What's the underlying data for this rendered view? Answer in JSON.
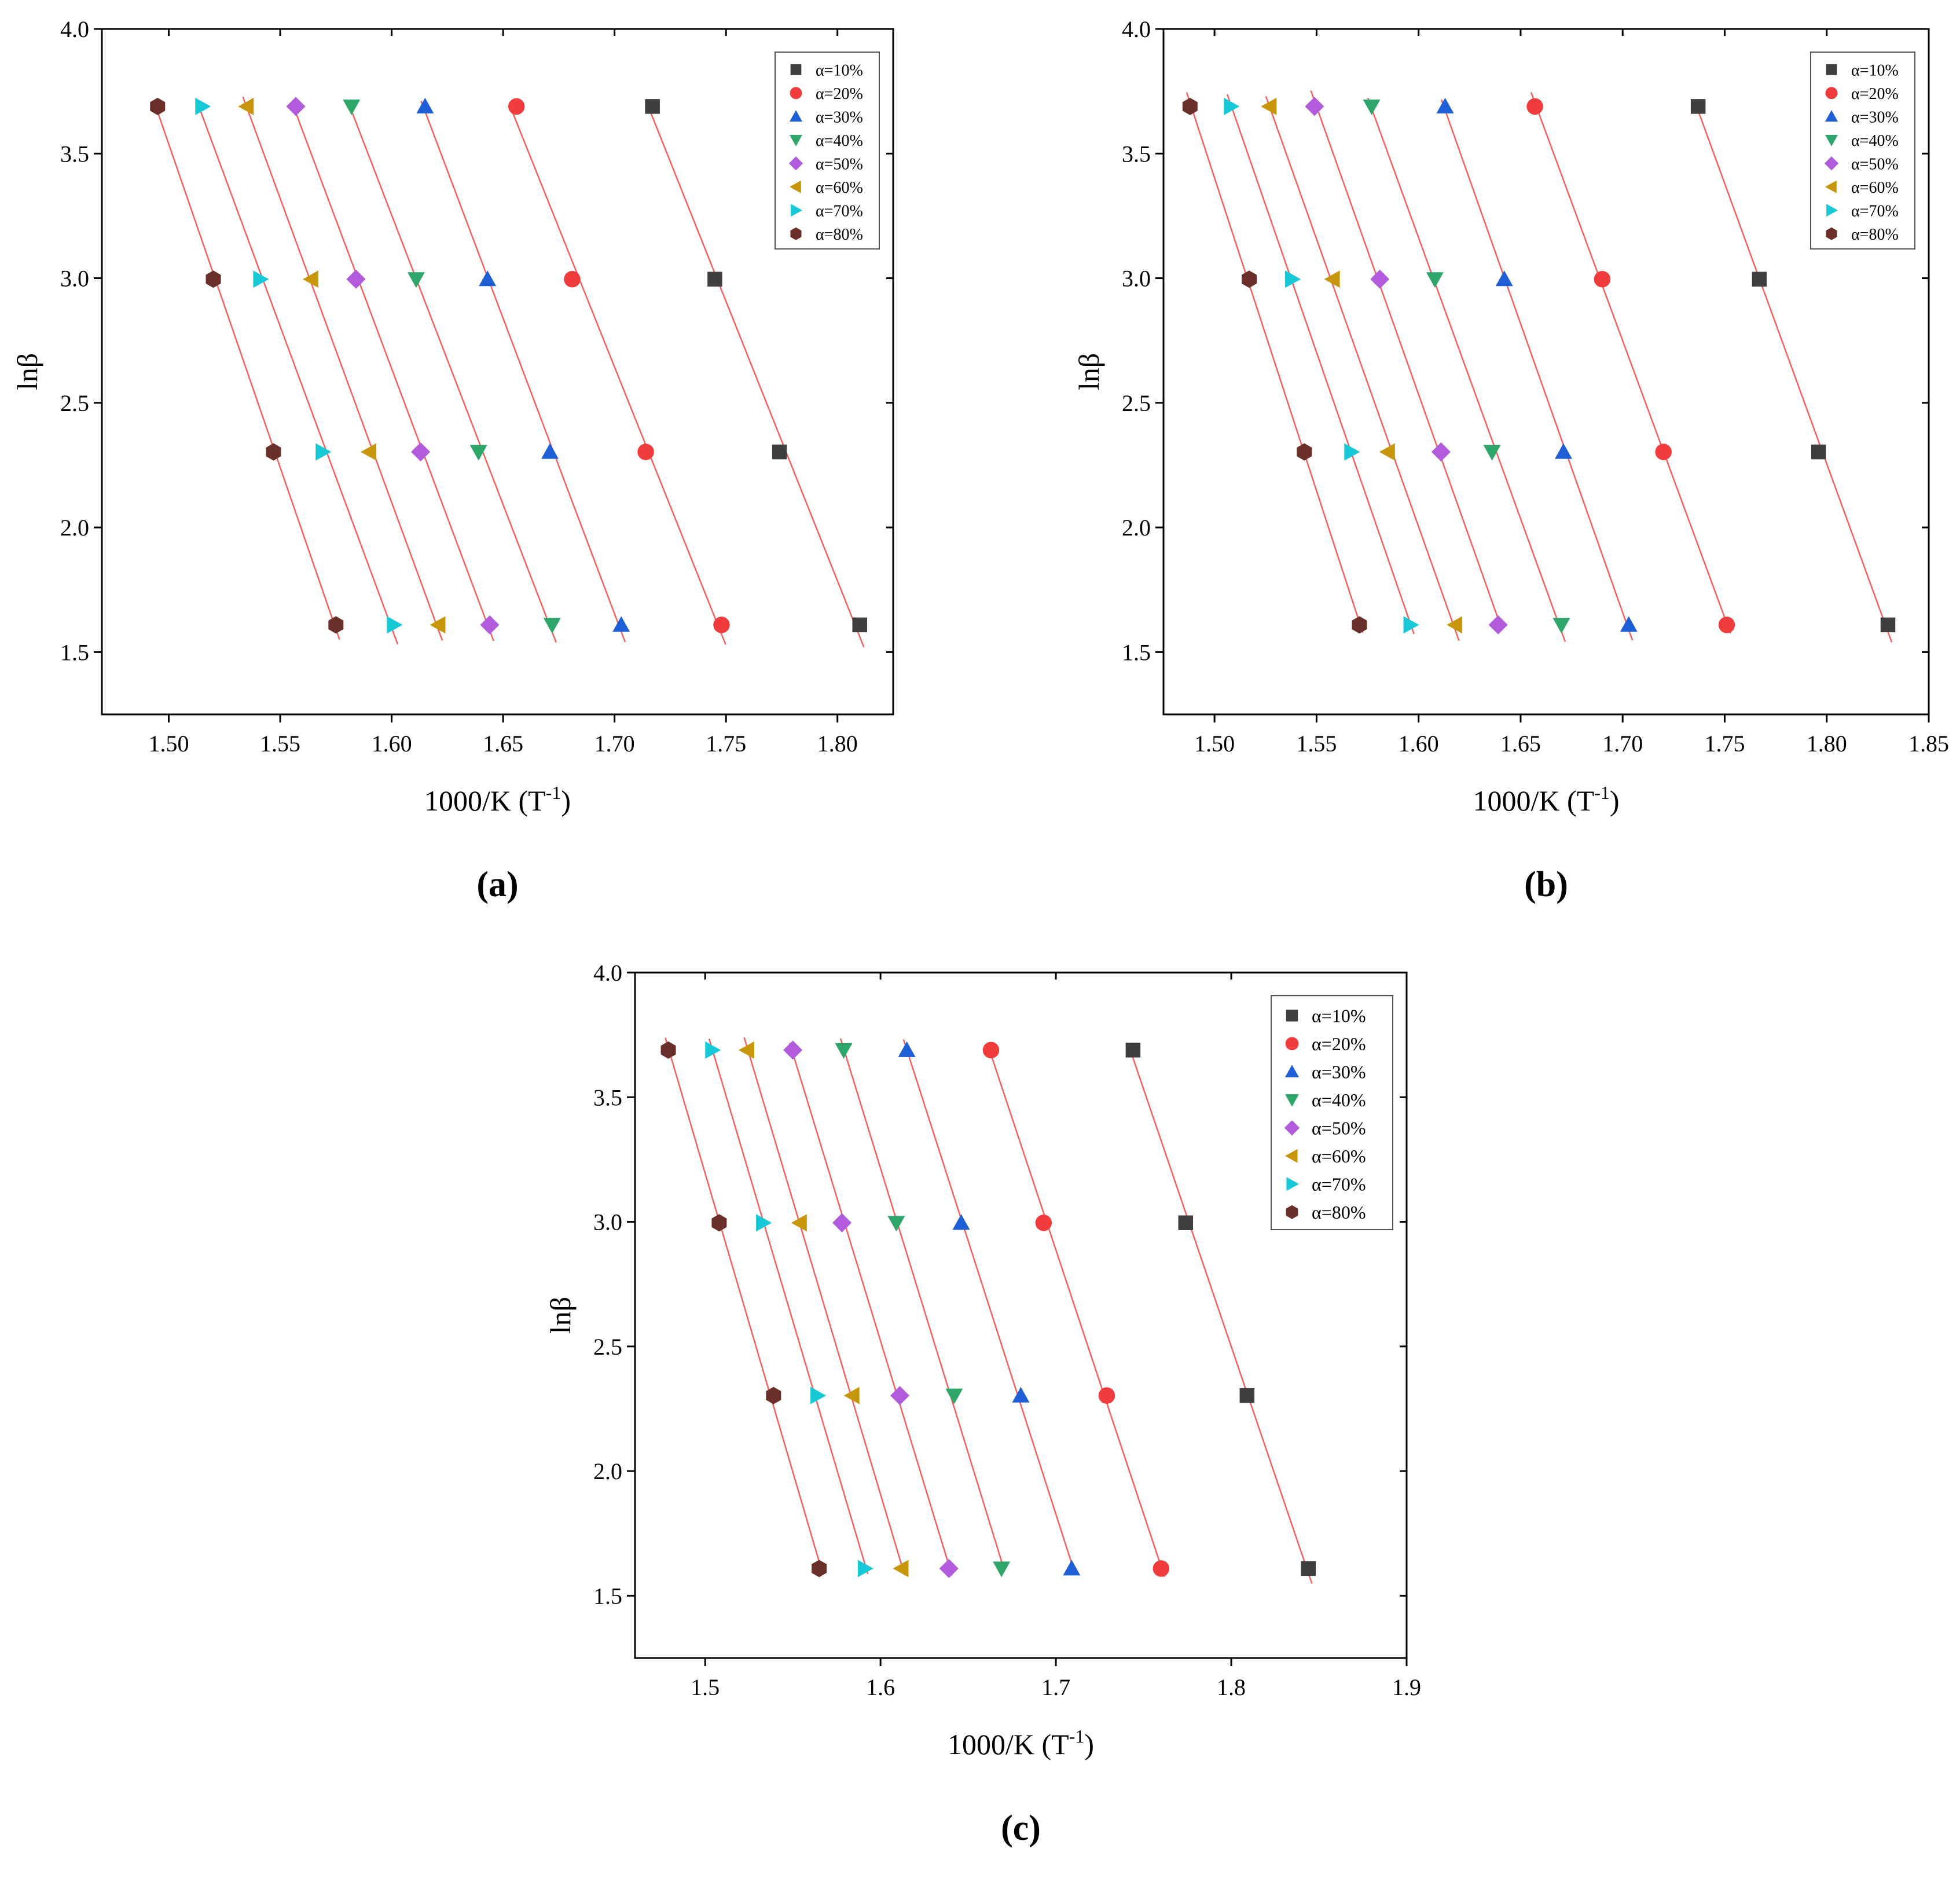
{
  "series_names": [
    "α=10%",
    "α=20%",
    "α=30%",
    "α=40%",
    "α=50%",
    "α=60%",
    "α=70%",
    "α=80%"
  ],
  "series_colors": [
    "#3f3f3f",
    "#f03c3c",
    "#1f5fd6",
    "#2ea66a",
    "#b25bdc",
    "#c8960a",
    "#17c8d6",
    "#6b2f2a"
  ],
  "series_markers": [
    "square",
    "circle",
    "triangle-up",
    "triangle-down",
    "diamond",
    "triangle-left",
    "triangle-right",
    "hexagon"
  ],
  "fit_line_color": "#f26060",
  "chart_data": [
    {
      "type": "scatter",
      "panel_label": "(a)",
      "xlabel": "1000/K (T",
      "xlabel_sup": "-1",
      "xlabel_close": ")",
      "ylabel": "lnβ",
      "xlim": [
        1.47,
        1.825
      ],
      "ylim": [
        1.25,
        4.0
      ],
      "xticks": [
        1.5,
        1.55,
        1.6,
        1.65,
        1.7,
        1.75,
        1.8
      ],
      "xtick_labels": [
        "1.50",
        "1.55",
        "1.60",
        "1.65",
        "1.70",
        "1.75",
        "1.80"
      ],
      "yticks": [
        1.5,
        2.0,
        2.5,
        3.0,
        3.5,
        4.0
      ],
      "ytick_labels": [
        "1.5",
        "2.0",
        "2.5",
        "3.0",
        "3.5",
        "4.0"
      ],
      "legend_position": "top-right",
      "y": [
        3.689,
        2.996,
        2.303,
        1.609
      ],
      "series": [
        {
          "name": "α=10%",
          "x": [
            1.717,
            1.745,
            1.774,
            1.81
          ]
        },
        {
          "name": "α=20%",
          "x": [
            1.656,
            1.681,
            1.714,
            1.748
          ]
        },
        {
          "name": "α=30%",
          "x": [
            1.615,
            1.643,
            1.671,
            1.703
          ]
        },
        {
          "name": "α=40%",
          "x": [
            1.582,
            1.611,
            1.639,
            1.672
          ]
        },
        {
          "name": "α=50%",
          "x": [
            1.557,
            1.584,
            1.613,
            1.644
          ]
        },
        {
          "name": "α=60%",
          "x": [
            1.535,
            1.564,
            1.59,
            1.621
          ]
        },
        {
          "name": "α=70%",
          "x": [
            1.515,
            1.541,
            1.569,
            1.601
          ]
        },
        {
          "name": "α=80%",
          "x": [
            1.495,
            1.52,
            1.547,
            1.575
          ]
        }
      ]
    },
    {
      "type": "scatter",
      "panel_label": "(b)",
      "xlabel": "1000/K (T",
      "xlabel_sup": "-1",
      "xlabel_close": ")",
      "ylabel": "lnβ",
      "xlim": [
        1.475,
        1.85
      ],
      "ylim": [
        1.25,
        4.0
      ],
      "xticks": [
        1.5,
        1.55,
        1.6,
        1.65,
        1.7,
        1.75,
        1.8,
        1.85
      ],
      "xtick_labels": [
        "1.50",
        "1.55",
        "1.60",
        "1.65",
        "1.70",
        "1.75",
        "1.80",
        "1.85"
      ],
      "yticks": [
        1.5,
        2.0,
        2.5,
        3.0,
        3.5,
        4.0
      ],
      "ytick_labels": [
        "1.5",
        "2.0",
        "2.5",
        "3.0",
        "3.5",
        "4.0"
      ],
      "legend_position": "top-right",
      "y": [
        3.689,
        2.996,
        2.303,
        1.609
      ],
      "series": [
        {
          "name": "α=10%",
          "x": [
            1.737,
            1.767,
            1.796,
            1.83
          ]
        },
        {
          "name": "α=20%",
          "x": [
            1.657,
            1.69,
            1.72,
            1.751
          ]
        },
        {
          "name": "α=30%",
          "x": [
            1.613,
            1.642,
            1.671,
            1.703
          ]
        },
        {
          "name": "α=40%",
          "x": [
            1.577,
            1.608,
            1.636,
            1.67
          ]
        },
        {
          "name": "α=50%",
          "x": [
            1.549,
            1.581,
            1.611,
            1.639
          ]
        },
        {
          "name": "α=60%",
          "x": [
            1.527,
            1.558,
            1.585,
            1.618
          ]
        },
        {
          "name": "α=70%",
          "x": [
            1.508,
            1.538,
            1.567,
            1.596
          ]
        },
        {
          "name": "α=80%",
          "x": [
            1.488,
            1.517,
            1.544,
            1.571
          ]
        }
      ]
    },
    {
      "type": "scatter",
      "panel_label": "(c)",
      "xlabel": "1000/K (T",
      "xlabel_sup": "-1",
      "xlabel_close": ")",
      "ylabel": "lnβ",
      "xlim": [
        1.46,
        1.9
      ],
      "ylim": [
        1.25,
        4.0
      ],
      "xticks": [
        1.5,
        1.6,
        1.7,
        1.8,
        1.9
      ],
      "xtick_labels": [
        "1.5",
        "1.6",
        "1.7",
        "1.8",
        "1.9"
      ],
      "yticks": [
        1.5,
        2.0,
        2.5,
        3.0,
        3.5,
        4.0
      ],
      "ytick_labels": [
        "1.5",
        "2.0",
        "2.5",
        "3.0",
        "3.5",
        "4.0"
      ],
      "legend_position": "top-right",
      "y": [
        3.689,
        2.996,
        2.303,
        1.609
      ],
      "series": [
        {
          "name": "α=10%",
          "x": [
            1.744,
            1.774,
            1.809,
            1.844
          ]
        },
        {
          "name": "α=20%",
          "x": [
            1.663,
            1.693,
            1.729,
            1.76
          ]
        },
        {
          "name": "α=30%",
          "x": [
            1.615,
            1.646,
            1.68,
            1.709
          ]
        },
        {
          "name": "α=40%",
          "x": [
            1.579,
            1.609,
            1.642,
            1.669
          ]
        },
        {
          "name": "α=50%",
          "x": [
            1.55,
            1.578,
            1.611,
            1.639
          ]
        },
        {
          "name": "α=60%",
          "x": [
            1.524,
            1.554,
            1.584,
            1.612
          ]
        },
        {
          "name": "α=70%",
          "x": [
            1.504,
            1.533,
            1.564,
            1.591
          ]
        },
        {
          "name": "α=80%",
          "x": [
            1.479,
            1.508,
            1.539,
            1.565
          ]
        }
      ]
    }
  ]
}
